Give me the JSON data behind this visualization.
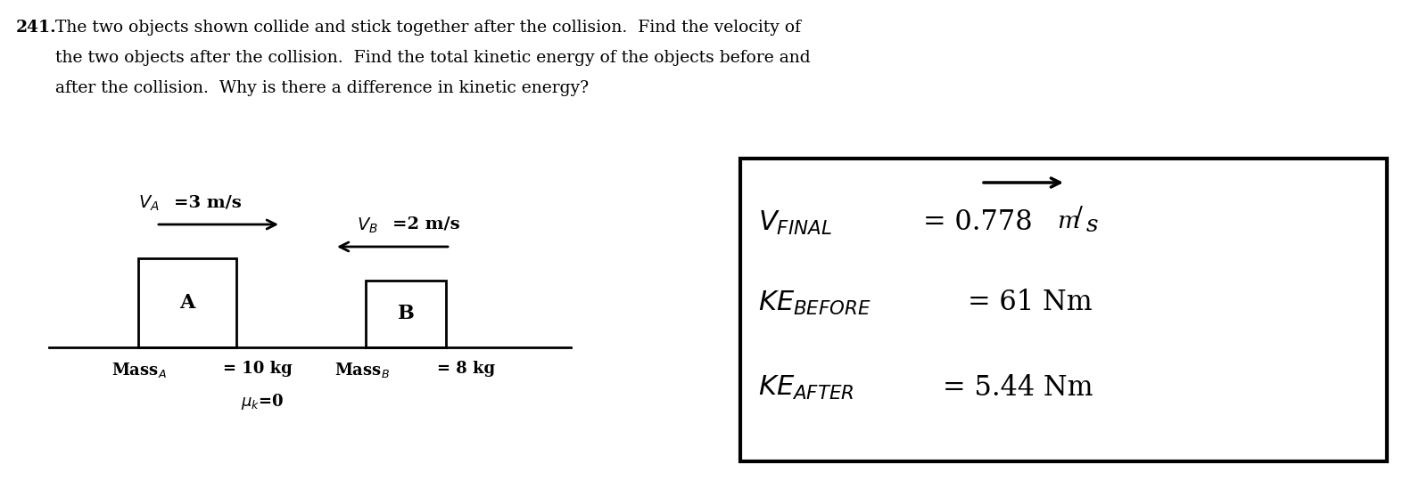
{
  "bg_color": "#ffffff",
  "problem_number": "241.",
  "problem_text_line1": "The two objects shown collide and stick together after the collision.  Find the velocity of",
  "problem_text_line2": "the two objects after the collision.  Find the total kinetic energy of the objects before and",
  "problem_text_line3": "after the collision.  Why is there a difference in kinetic energy?",
  "Va_label": "V",
  "Va_sub": "A",
  "Va_val": "=3 m/s",
  "Vb_label": "V",
  "Vb_sub": "B",
  "Vb_val": "=2 m/s",
  "box_A_label": "A",
  "box_B_label": "B",
  "mass_A_text": "Mass",
  "mass_A_sub": "A",
  "mass_A_val": "= 10 kg",
  "mass_B_text": "Mass",
  "mass_B_sub": "B",
  "mass_B_val": "= 8 kg",
  "mu_k_val": "=0",
  "result_vfinal_val": "= 0.778",
  "result_vfinal_unit": "m/s",
  "result_ke_before_val": "= 61 Nm",
  "result_ke_after_val": "= 5.44 Nm",
  "text_color": "#000000",
  "box_color": "#000000"
}
